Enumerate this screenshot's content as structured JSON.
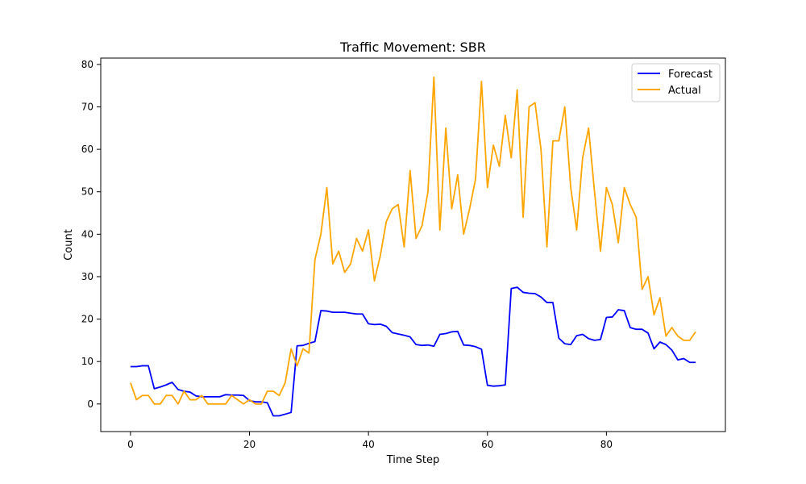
{
  "chart_data": {
    "type": "line",
    "title": "Traffic Movement: SBR",
    "xlabel": "Time Step",
    "ylabel": "Count",
    "xlim": [
      -5,
      100
    ],
    "ylim": [
      -6.5,
      81.5
    ],
    "xticks": [
      0,
      20,
      40,
      60,
      80
    ],
    "yticks": [
      0,
      10,
      20,
      30,
      40,
      50,
      60,
      70,
      80
    ],
    "grid": false,
    "legend_position": "top-right",
    "series": [
      {
        "name": "Forecast",
        "color": "#0000ff",
        "x": [
          0,
          1,
          2,
          3,
          4,
          5,
          6,
          7,
          8,
          9,
          10,
          11,
          12,
          13,
          14,
          15,
          16,
          17,
          18,
          19,
          20,
          21,
          22,
          23,
          24,
          25,
          26,
          27,
          28,
          29,
          30,
          31,
          32,
          33,
          34,
          35,
          36,
          37,
          38,
          39,
          40,
          41,
          42,
          43,
          44,
          45,
          46,
          47,
          48,
          49,
          50,
          51,
          52,
          53,
          54,
          55,
          56,
          57,
          58,
          59,
          60,
          61,
          62,
          63,
          64,
          65,
          66,
          67,
          68,
          69,
          70,
          71,
          72,
          73,
          74,
          75,
          76,
          77,
          78,
          79,
          80,
          81,
          82,
          83,
          84,
          85,
          86,
          87,
          88,
          89,
          90,
          91,
          92,
          93,
          94,
          95
        ],
        "values": [
          8.8,
          8.8,
          9.0,
          9.0,
          3.6,
          4.0,
          4.5,
          5.1,
          3.4,
          3.0,
          2.8,
          1.9,
          1.7,
          1.7,
          1.7,
          1.7,
          2.2,
          2.1,
          2.1,
          2.0,
          0.8,
          0.5,
          0.5,
          0.3,
          -2.8,
          -2.8,
          -2.4,
          -2.0,
          13.7,
          13.8,
          14.3,
          14.7,
          22.0,
          21.9,
          21.6,
          21.6,
          21.6,
          21.4,
          21.2,
          21.2,
          18.9,
          18.7,
          18.8,
          18.3,
          16.8,
          16.5,
          16.2,
          15.8,
          14.0,
          13.8,
          13.9,
          13.6,
          16.4,
          16.6,
          17.0,
          17.1,
          13.9,
          13.8,
          13.5,
          12.9,
          4.4,
          4.2,
          4.3,
          4.5,
          27.2,
          27.5,
          26.3,
          26.1,
          26.0,
          25.2,
          23.9,
          23.9,
          15.5,
          14.2,
          14.0,
          16.1,
          16.4,
          15.4,
          15.0,
          15.2,
          20.4,
          20.5,
          22.2,
          22.0,
          18.0,
          17.6,
          17.6,
          16.7,
          13.0,
          14.6,
          14.0,
          12.7,
          10.4,
          10.7,
          9.8,
          9.8
        ]
      },
      {
        "name": "Actual",
        "color": "#ffa500",
        "x": [
          0,
          1,
          2,
          3,
          4,
          5,
          6,
          7,
          8,
          9,
          10,
          11,
          12,
          13,
          14,
          15,
          16,
          17,
          18,
          19,
          20,
          21,
          22,
          23,
          24,
          25,
          26,
          27,
          28,
          29,
          30,
          31,
          32,
          33,
          34,
          35,
          36,
          37,
          38,
          39,
          40,
          41,
          42,
          43,
          44,
          45,
          46,
          47,
          48,
          49,
          50,
          51,
          52,
          53,
          54,
          55,
          56,
          57,
          58,
          59,
          60,
          61,
          62,
          63,
          64,
          65,
          66,
          67,
          68,
          69,
          70,
          71,
          72,
          73,
          74,
          75,
          76,
          77,
          78,
          79,
          80,
          81,
          82,
          83,
          84,
          85,
          86,
          87,
          88,
          89,
          90,
          91,
          92,
          93,
          94,
          95
        ],
        "values": [
          5,
          1,
          2,
          2,
          0,
          0,
          2,
          2,
          0,
          3,
          1,
          1,
          2,
          0,
          0,
          0,
          0,
          2,
          1,
          0,
          1,
          0,
          0,
          3,
          3,
          2,
          5,
          13,
          9,
          13,
          12,
          34,
          40,
          51,
          33,
          36,
          31,
          33,
          39,
          36,
          41,
          29,
          35,
          43,
          46,
          47,
          37,
          55,
          39,
          42,
          50,
          77,
          41,
          65,
          46,
          54,
          40,
          46,
          53,
          76,
          51,
          61,
          56,
          68,
          58,
          74,
          44,
          70,
          71,
          60,
          37,
          62,
          62,
          70,
          51,
          41,
          58,
          65,
          50,
          36,
          51,
          47,
          38,
          51,
          47,
          44,
          27,
          30,
          21,
          25,
          16,
          18,
          16,
          15,
          15,
          17
        ]
      }
    ]
  }
}
